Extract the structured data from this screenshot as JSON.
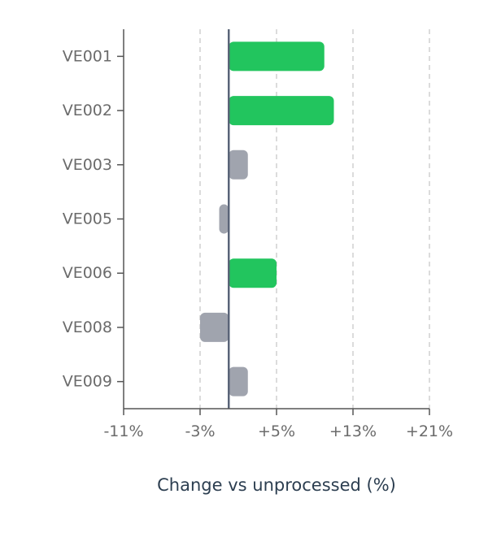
{
  "chart_data": {
    "type": "bar",
    "orientation": "horizontal",
    "categories": [
      "VE001",
      "VE002",
      "VE003",
      "VE005",
      "VE006",
      "VE008",
      "VE009"
    ],
    "values": [
      10.0,
      11.0,
      2.0,
      -1.0,
      5.0,
      -3.0,
      2.0
    ],
    "bar_colors": [
      "#22c55e",
      "#22c55e",
      "#a0a4ae",
      "#a0a4ae",
      "#22c55e",
      "#a0a4ae",
      "#a0a4ae"
    ],
    "xlim": [
      -11,
      21
    ],
    "xticks": [
      -11,
      -3,
      5,
      13,
      21
    ],
    "xtick_labels": [
      "-11%",
      "-3%",
      "+5%",
      "+13%",
      "+21%"
    ],
    "xlabel": "Change vs unprocessed (%)",
    "grid": "vertical dashed",
    "zero_line_color": "#5a6478",
    "axis_color": "#555555",
    "grid_color": "#c8c8c8"
  }
}
